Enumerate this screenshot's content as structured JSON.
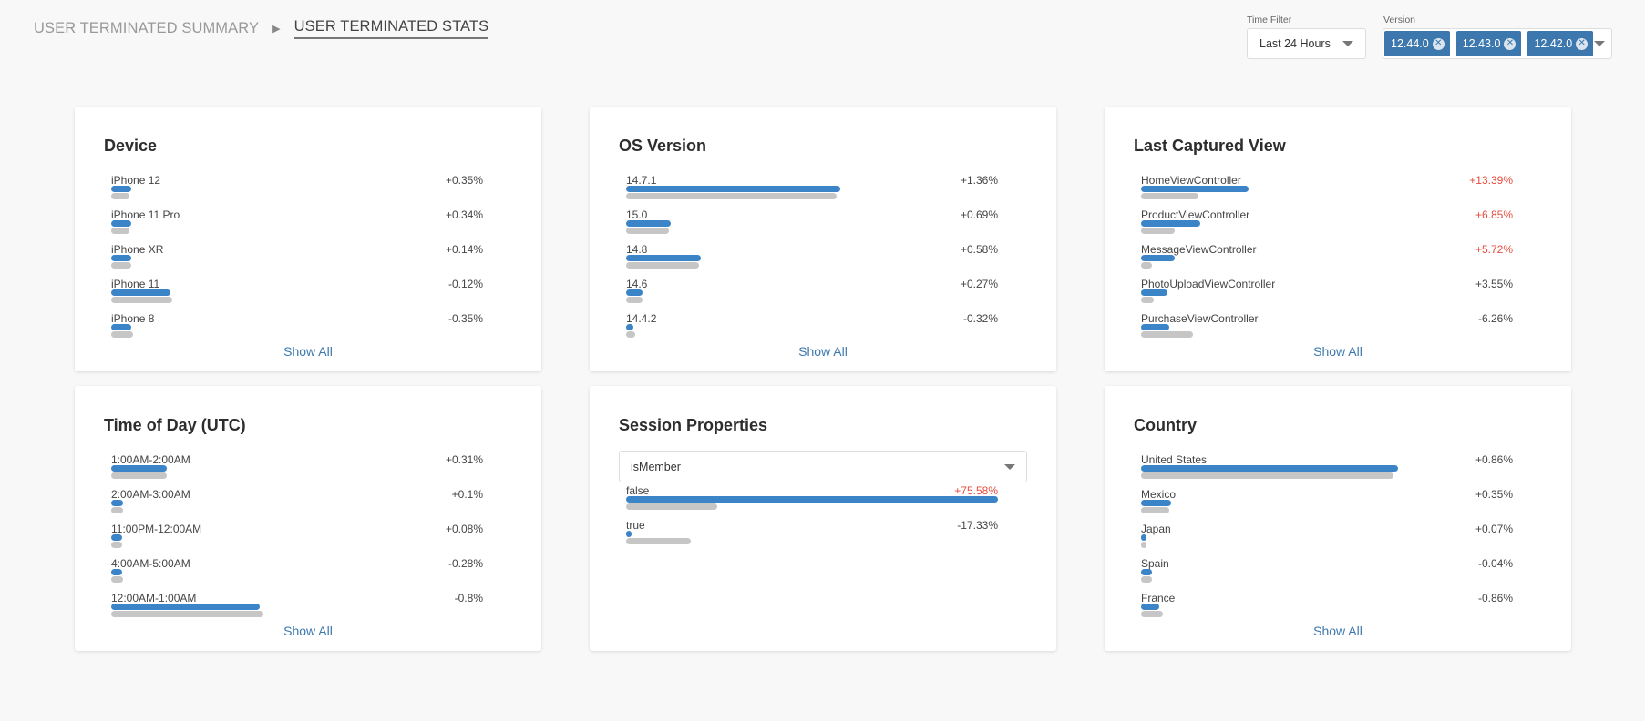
{
  "breadcrumb": {
    "summary": "USER TERMINATED SUMMARY",
    "stats": "USER TERMINATED STATS"
  },
  "filters": {
    "time_label": "Time Filter",
    "time_value": "Last 24 Hours",
    "version_label": "Version",
    "versions": [
      "12.44.0",
      "12.43.0",
      "12.42.0"
    ]
  },
  "colors": {
    "accent": "#3c78ad",
    "bar_current": "#3c84c8",
    "bar_previous": "#c6c6c6",
    "negative_highlight": "#e74c3c"
  },
  "cards": [
    {
      "title": "Device",
      "show_all": "Show All",
      "rows": [
        {
          "label": "iPhone 12",
          "pct": "+0.35%",
          "current": 0.055,
          "previous": 0.05,
          "highlight": false
        },
        {
          "label": "iPhone 11 Pro",
          "pct": "+0.34%",
          "current": 0.055,
          "previous": 0.05,
          "highlight": false
        },
        {
          "label": "iPhone XR",
          "pct": "+0.14%",
          "current": 0.055,
          "previous": 0.055,
          "highlight": false
        },
        {
          "label": "iPhone 11",
          "pct": "-0.12%",
          "current": 0.16,
          "previous": 0.165,
          "highlight": false
        },
        {
          "label": "iPhone 8",
          "pct": "-0.35%",
          "current": 0.055,
          "previous": 0.06,
          "highlight": false
        }
      ]
    },
    {
      "title": "OS Version",
      "show_all": "Show All",
      "rows": [
        {
          "label": "14.7.1",
          "pct": "+1.36%",
          "current": 0.575,
          "previous": 0.565,
          "highlight": false
        },
        {
          "label": "15.0",
          "pct": "+0.69%",
          "current": 0.12,
          "previous": 0.115,
          "highlight": false
        },
        {
          "label": "14.8",
          "pct": "+0.58%",
          "current": 0.2,
          "previous": 0.195,
          "highlight": false
        },
        {
          "label": "14.6",
          "pct": "+0.27%",
          "current": 0.045,
          "previous": 0.045,
          "highlight": false
        },
        {
          "label": "14.4.2",
          "pct": "-0.32%",
          "current": 0.02,
          "previous": 0.025,
          "highlight": false
        }
      ]
    },
    {
      "title": "Last Captured View",
      "show_all": "Show All",
      "rows": [
        {
          "label": "HomeViewController",
          "pct": "+13.39%",
          "current": 0.29,
          "previous": 0.155,
          "highlight": true
        },
        {
          "label": "ProductViewController",
          "pct": "+6.85%",
          "current": 0.16,
          "previous": 0.09,
          "highlight": true
        },
        {
          "label": "MessageViewController",
          "pct": "+5.72%",
          "current": 0.09,
          "previous": 0.03,
          "highlight": true
        },
        {
          "label": "PhotoUploadViewController",
          "pct": "+3.55%",
          "current": 0.07,
          "previous": 0.035,
          "highlight": false
        },
        {
          "label": "PurchaseViewController",
          "pct": "-6.26%",
          "current": 0.075,
          "previous": 0.14,
          "highlight": false
        }
      ]
    },
    {
      "title": "Time of Day (UTC)",
      "show_all": "Show All",
      "rows": [
        {
          "label": "1:00AM-2:00AM",
          "pct": "+0.31%",
          "current": 0.15,
          "previous": 0.15,
          "highlight": false
        },
        {
          "label": "2:00AM-3:00AM",
          "pct": "+0.1%",
          "current": 0.033,
          "previous": 0.033,
          "highlight": false
        },
        {
          "label": "11:00PM-12:00AM",
          "pct": "+0.08%",
          "current": 0.03,
          "previous": 0.03,
          "highlight": false
        },
        {
          "label": "4:00AM-5:00AM",
          "pct": "-0.28%",
          "current": 0.03,
          "previous": 0.033,
          "highlight": false
        },
        {
          "label": "12:00AM-1:00AM",
          "pct": "-0.8%",
          "current": 0.4,
          "previous": 0.41,
          "highlight": false
        }
      ]
    },
    {
      "title": "Session Properties",
      "select_value": "isMember",
      "rows": [
        {
          "label": "false",
          "pct": "+75.58%",
          "current": 1.0,
          "previous": 0.245,
          "highlight": true
        },
        {
          "label": "true",
          "pct": "-17.33%",
          "current": 0.008,
          "previous": 0.175,
          "highlight": false
        }
      ]
    },
    {
      "title": "Country",
      "show_all": "Show All",
      "rows": [
        {
          "label": "United States",
          "pct": "+0.86%",
          "current": 0.69,
          "previous": 0.68,
          "highlight": false
        },
        {
          "label": "Mexico",
          "pct": "+0.35%",
          "current": 0.08,
          "previous": 0.075,
          "highlight": false
        },
        {
          "label": "Japan",
          "pct": "+0.07%",
          "current": 0.01,
          "previous": 0.01,
          "highlight": false
        },
        {
          "label": "Spain",
          "pct": "-0.04%",
          "current": 0.03,
          "previous": 0.03,
          "highlight": false
        },
        {
          "label": "France",
          "pct": "-0.86%",
          "current": 0.05,
          "previous": 0.06,
          "highlight": false
        }
      ]
    }
  ]
}
